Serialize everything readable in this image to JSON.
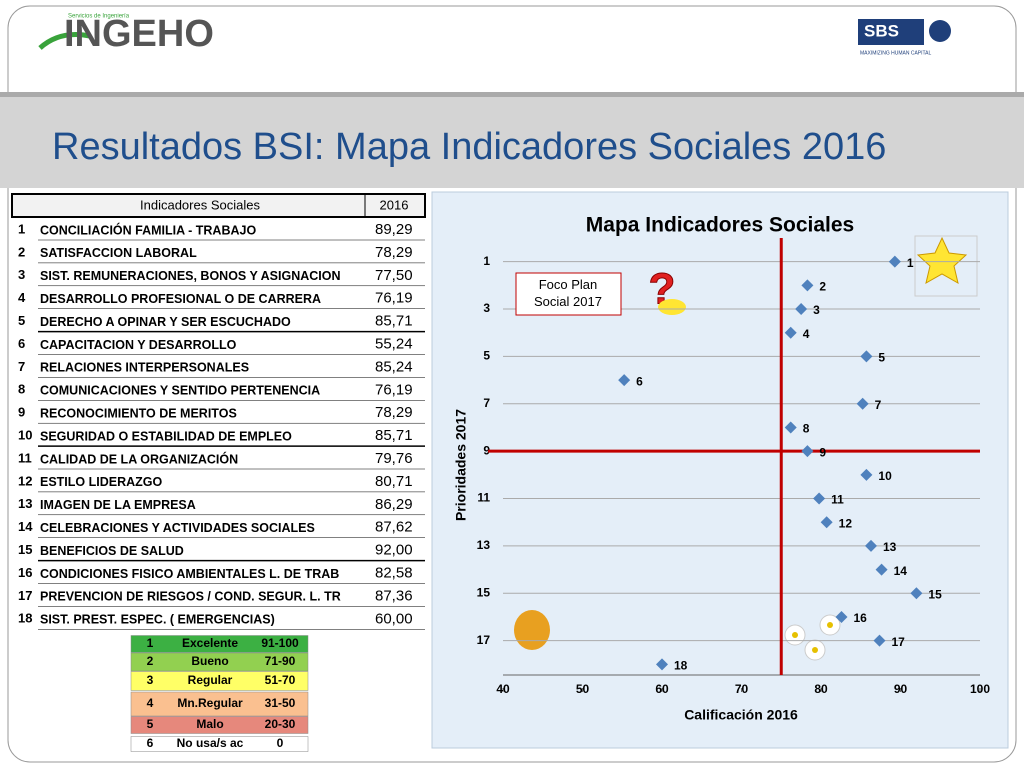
{
  "header": {
    "logo_left": "INGEHO",
    "logo_left_small": "Servicios de Ingeniería",
    "logo_right": "SBS",
    "logo_right_small": "MAXIMIZING HUMAN CAPITAL"
  },
  "title": "Resultados BSI: Mapa Indicadores Sociales 2016",
  "table": {
    "columns": [
      "Indicadores Sociales",
      "2016"
    ],
    "rows": [
      [
        "1",
        "CONCILIACIÓN FAMILIA - TRABAJO",
        "89,29"
      ],
      [
        "2",
        "SATISFACCION LABORAL",
        "78,29"
      ],
      [
        "3",
        "SIST. REMUNERACIONES, BONOS Y ASIGNACION",
        "77,50"
      ],
      [
        "4",
        "DESARROLLO PROFESIONAL O DE CARRERA",
        "76,19"
      ],
      [
        "5",
        "DERECHO A OPINAR Y SER ESCUCHADO",
        "85,71"
      ],
      [
        "6",
        "CAPACITACION Y DESARROLLO",
        "55,24"
      ],
      [
        "7",
        "RELACIONES INTERPERSONALES",
        "85,24"
      ],
      [
        "8",
        "COMUNICACIONES Y SENTIDO PERTENENCIA",
        "76,19"
      ],
      [
        "9",
        "RECONOCIMIENTO DE MERITOS",
        "78,29"
      ],
      [
        "10",
        "SEGURIDAD O ESTABILIDAD DE EMPLEO",
        "85,71"
      ],
      [
        "11",
        "CALIDAD DE LA ORGANIZACIÓN",
        "79,76"
      ],
      [
        "12",
        "ESTILO LIDERAZGO",
        "80,71"
      ],
      [
        "13",
        "IMAGEN DE LA EMPRESA",
        "86,29"
      ],
      [
        "14",
        "CELEBRACIONES Y ACTIVIDADES SOCIALES",
        "87,62"
      ],
      [
        "15",
        "BENEFICIOS DE SALUD",
        "92,00"
      ],
      [
        "16",
        "CONDICIONES FISICO AMBIENTALES L. DE TRAB",
        "82,58"
      ],
      [
        "17",
        "PREVENCION DE RIESGOS / COND. SEGUR. L. TR",
        "87,36"
      ],
      [
        "18",
        "SIST. PREST. ESPEC. ( EMERGENCIAS)",
        "60,00"
      ]
    ]
  },
  "scale_table": {
    "rows": [
      {
        "cells": [
          "1",
          "Excelente",
          "91-100"
        ],
        "color": "#3cb043"
      },
      {
        "cells": [
          "2",
          "Bueno",
          "71-90"
        ],
        "color": "#92d050"
      },
      {
        "cells": [
          "3",
          "Regular",
          "51-70"
        ],
        "color": "#ffff66"
      },
      {
        "cells": [
          "4",
          "Mn.Regular",
          "31-50"
        ],
        "color": "#fac090"
      },
      {
        "cells": [
          "5",
          "Malo",
          "20-30"
        ],
        "color": "#e6887c"
      },
      {
        "cells": [
          "6",
          "No usa/s ac",
          "0"
        ],
        "color": "#ffffff"
      }
    ]
  },
  "chart_data": {
    "type": "scatter",
    "title": "Mapa Indicadores Sociales",
    "x_label": "Calificación 2016",
    "y_label": "Prioridades 2017",
    "annotation": "Foco Plan Social 2017",
    "color": "#4f81bd",
    "x": [
      89.29,
      78.29,
      77.5,
      76.19,
      85.71,
      55.24,
      85.24,
      76.19,
      78.29,
      85.71,
      79.76,
      80.71,
      86.29,
      87.62,
      92.0,
      82.58,
      87.36,
      60.0
    ],
    "values": [
      1,
      2,
      3,
      4,
      5,
      6,
      7,
      8,
      9,
      10,
      11,
      12,
      13,
      14,
      15,
      16,
      17,
      18
    ],
    "point_labels": [
      "1",
      "2",
      "3",
      "4",
      "5",
      "6",
      "7",
      "8",
      "9",
      "10",
      "11",
      "12",
      "13",
      "14",
      "15",
      "16",
      "17",
      "18"
    ],
    "xlim": [
      40,
      100
    ],
    "xticks": [
      40,
      50,
      60,
      70,
      80,
      90,
      100
    ],
    "ylim": [
      0,
      19
    ],
    "yticks": [
      1,
      3,
      5,
      7,
      9,
      11,
      13,
      15,
      17
    ],
    "y_inverted": true,
    "grid": true,
    "reference_lines": {
      "x": 75,
      "y": 9,
      "color": "#c00000"
    }
  }
}
